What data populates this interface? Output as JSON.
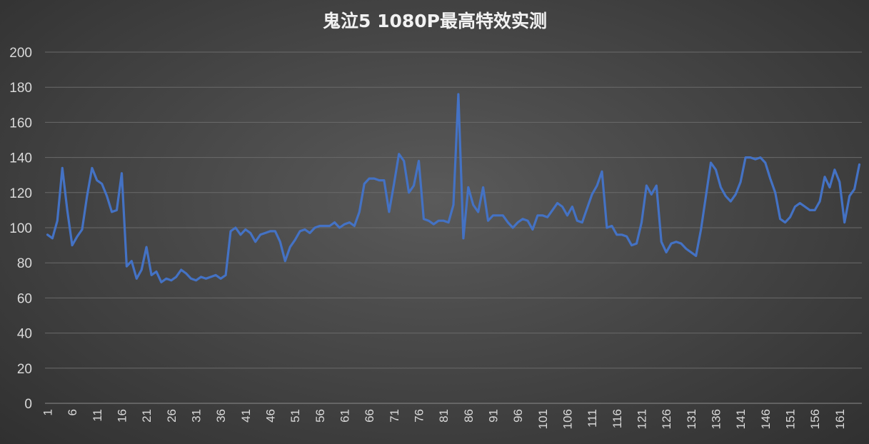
{
  "chart_data": {
    "type": "line",
    "title": "鬼泣5 1080P最高特效实测",
    "xlabel": "",
    "ylabel": "",
    "ylim": [
      0,
      200
    ],
    "yticks": [
      0,
      20,
      40,
      60,
      80,
      100,
      120,
      140,
      160,
      180,
      200
    ],
    "xtick_labels": [
      "1",
      "6",
      "11",
      "16",
      "21",
      "26",
      "31",
      "36",
      "41",
      "46",
      "51",
      "56",
      "61",
      "66",
      "71",
      "76",
      "81",
      "86",
      "91",
      "96",
      "101",
      "106",
      "111",
      "116",
      "121",
      "126",
      "131",
      "136",
      "141",
      "146",
      "151",
      "156",
      "161"
    ],
    "grid": true,
    "legend": "none",
    "colors": {
      "line": "#4472C4",
      "background": "#404040"
    },
    "series": [
      {
        "values": [
          96,
          94,
          104,
          134,
          110,
          90,
          95,
          99,
          118,
          134,
          127,
          125,
          118,
          109,
          110,
          131,
          78,
          81,
          71,
          76,
          89,
          73,
          75,
          69,
          71,
          70,
          72,
          76,
          74,
          71,
          70,
          72,
          71,
          72,
          73,
          71,
          73,
          98,
          100,
          96,
          99,
          97,
          92,
          96,
          97,
          98,
          98,
          92,
          81,
          89,
          93,
          98,
          99,
          97,
          100,
          101,
          101,
          101,
          103,
          100,
          102,
          103,
          101,
          109,
          125,
          128,
          128,
          127,
          127,
          109,
          125,
          142,
          138,
          120,
          124,
          138,
          105,
          104,
          102,
          104,
          104,
          103,
          113,
          176,
          94,
          123,
          113,
          109,
          123,
          104,
          107,
          107,
          107,
          103,
          100,
          103,
          105,
          104,
          99,
          107,
          107,
          106,
          110,
          114,
          112,
          107,
          112,
          104,
          103,
          111,
          119,
          124,
          132,
          100,
          101,
          96,
          96,
          95,
          90,
          91,
          103,
          124,
          119,
          124,
          92,
          86,
          91,
          92,
          91,
          88,
          86,
          84,
          99,
          118,
          137,
          133,
          123,
          118,
          115,
          119,
          126,
          140,
          140,
          139,
          140,
          137,
          128,
          120,
          105,
          103,
          106,
          112,
          114,
          112,
          110,
          110,
          115,
          129,
          123,
          133,
          126,
          103,
          118,
          122,
          136
        ]
      }
    ]
  }
}
